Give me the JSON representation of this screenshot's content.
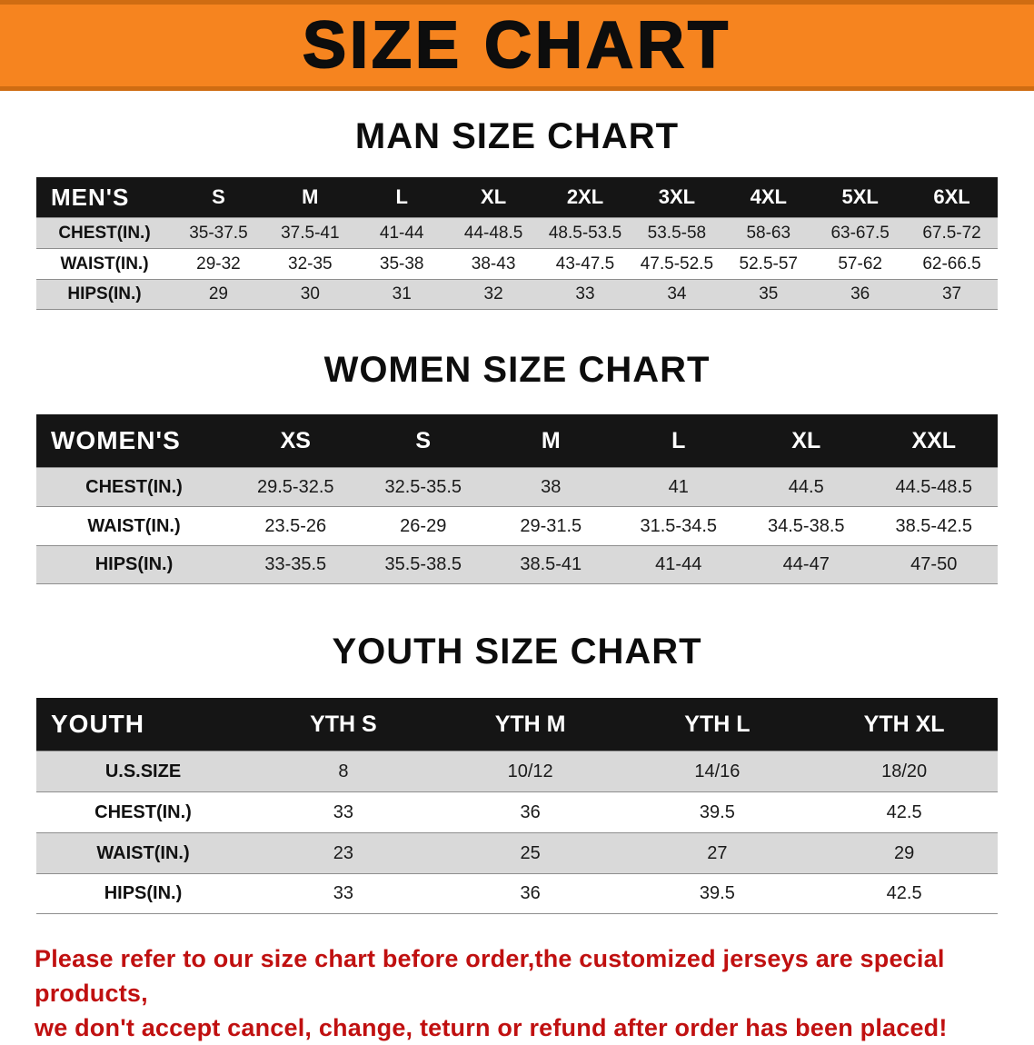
{
  "banner": {
    "title": "SIZE CHART"
  },
  "chart_data": [
    {
      "type": "table",
      "title": "MAN SIZE CHART",
      "corner_label": "MEN'S",
      "columns": [
        "S",
        "M",
        "L",
        "XL",
        "2XL",
        "3XL",
        "4XL",
        "5XL",
        "6XL"
      ],
      "rows": [
        {
          "label": "CHEST(IN.)",
          "values": [
            "35-37.5",
            "37.5-41",
            "41-44",
            "44-48.5",
            "48.5-53.5",
            "53.5-58",
            "58-63",
            "63-67.5",
            "67.5-72"
          ]
        },
        {
          "label": "WAIST(IN.)",
          "values": [
            "29-32",
            "32-35",
            "35-38",
            "38-43",
            "43-47.5",
            "47.5-52.5",
            "52.5-57",
            "57-62",
            "62-66.5"
          ]
        },
        {
          "label": "HIPS(IN.)",
          "values": [
            "29",
            "30",
            "31",
            "32",
            "33",
            "34",
            "35",
            "36",
            "37"
          ]
        }
      ]
    },
    {
      "type": "table",
      "title": "WOMEN SIZE CHART",
      "corner_label": "WOMEN'S",
      "columns": [
        "XS",
        "S",
        "M",
        "L",
        "XL",
        "XXL"
      ],
      "rows": [
        {
          "label": "CHEST(IN.)",
          "values": [
            "29.5-32.5",
            "32.5-35.5",
            "38",
            "41",
            "44.5",
            "44.5-48.5"
          ]
        },
        {
          "label": "WAIST(IN.)",
          "values": [
            "23.5-26",
            "26-29",
            "29-31.5",
            "31.5-34.5",
            "34.5-38.5",
            "38.5-42.5"
          ]
        },
        {
          "label": "HIPS(IN.)",
          "values": [
            "33-35.5",
            "35.5-38.5",
            "38.5-41",
            "41-44",
            "44-47",
            "47-50"
          ]
        }
      ]
    },
    {
      "type": "table",
      "title": "YOUTH SIZE CHART",
      "corner_label": "YOUTH",
      "columns": [
        "YTH S",
        "YTH M",
        "YTH L",
        "YTH XL"
      ],
      "rows": [
        {
          "label": "U.S.SIZE",
          "values": [
            "8",
            "10/12",
            "14/16",
            "18/20"
          ]
        },
        {
          "label": "CHEST(IN.)",
          "values": [
            "33",
            "36",
            "39.5",
            "42.5"
          ]
        },
        {
          "label": "WAIST(IN.)",
          "values": [
            "23",
            "25",
            "27",
            "29"
          ]
        },
        {
          "label": "HIPS(IN.)",
          "values": [
            "33",
            "36",
            "39.5",
            "42.5"
          ]
        }
      ]
    }
  ],
  "footer": {
    "line1": "Please refer to our size chart before order,the customized jerseys are special products,",
    "line2": "we don't accept cancel, change, teturn or refund after order has been placed!"
  },
  "colors": {
    "banner_bg": "#f6841f",
    "banner_border": "#cf6c12",
    "table_header_bg": "#151515",
    "row_stripe_bg": "#d9d9d9",
    "footer_text": "#c01010",
    "title_text": "#0d0d0d"
  }
}
